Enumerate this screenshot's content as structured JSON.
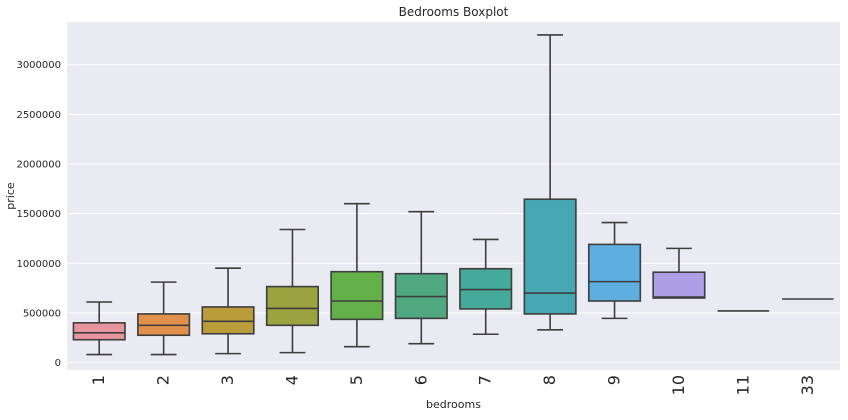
{
  "chart_data": {
    "type": "boxplot",
    "title": "Bedrooms Boxplot",
    "xlabel": "bedrooms",
    "ylabel": "price",
    "ylim": [
      -75000,
      3430000
    ],
    "yticks": [
      0,
      500000,
      1000000,
      1500000,
      2000000,
      2500000,
      3000000
    ],
    "ytick_labels": [
      "0",
      "500000",
      "1000000",
      "1500000",
      "2000000",
      "2500000",
      "3000000"
    ],
    "categories": [
      "1",
      "2",
      "3",
      "4",
      "5",
      "6",
      "7",
      "8",
      "9",
      "10",
      "11",
      "33"
    ],
    "boxes": [
      {
        "whislo": 80000,
        "q1": 230000,
        "med": 300000,
        "q3": 400000,
        "whishi": 610000,
        "color": "#e8949e"
      },
      {
        "whislo": 80000,
        "q1": 275000,
        "med": 375000,
        "q3": 490000,
        "whishi": 810000,
        "color": "#e0904a"
      },
      {
        "whislo": 90000,
        "q1": 290000,
        "med": 415000,
        "q3": 560000,
        "whishi": 950000,
        "color": "#bb9c3b"
      },
      {
        "whislo": 100000,
        "q1": 375000,
        "med": 545000,
        "q3": 765000,
        "whishi": 1340000,
        "color": "#9ba340"
      },
      {
        "whislo": 160000,
        "q1": 435000,
        "med": 620000,
        "q3": 915000,
        "whishi": 1600000,
        "color": "#63b148"
      },
      {
        "whislo": 190000,
        "q1": 445000,
        "med": 665000,
        "q3": 895000,
        "whishi": 1520000,
        "color": "#50a880"
      },
      {
        "whislo": 285000,
        "q1": 540000,
        "med": 735000,
        "q3": 945000,
        "whishi": 1240000,
        "color": "#46aa9a"
      },
      {
        "whislo": 330000,
        "q1": 490000,
        "med": 700000,
        "q3": 1645000,
        "whishi": 3300000,
        "color": "#47a8b4"
      },
      {
        "whislo": 445000,
        "q1": 620000,
        "med": 815000,
        "q3": 1190000,
        "whishi": 1410000,
        "color": "#5eaee0"
      },
      {
        "whislo": 650000,
        "q1": 650000,
        "med": 660000,
        "q3": 910000,
        "whishi": 1150000,
        "color": "#ad9ee6"
      },
      {
        "whislo": 520000,
        "q1": 520000,
        "med": 520000,
        "q3": 520000,
        "whishi": 520000,
        "color": "#d986d6"
      },
      {
        "whislo": 640000,
        "q1": 640000,
        "med": 640000,
        "q3": 640000,
        "whishi": 640000,
        "color": "#e58fb8"
      }
    ],
    "grid": true,
    "background": "#eaeaf2",
    "line_color": "#3d3d3d"
  }
}
